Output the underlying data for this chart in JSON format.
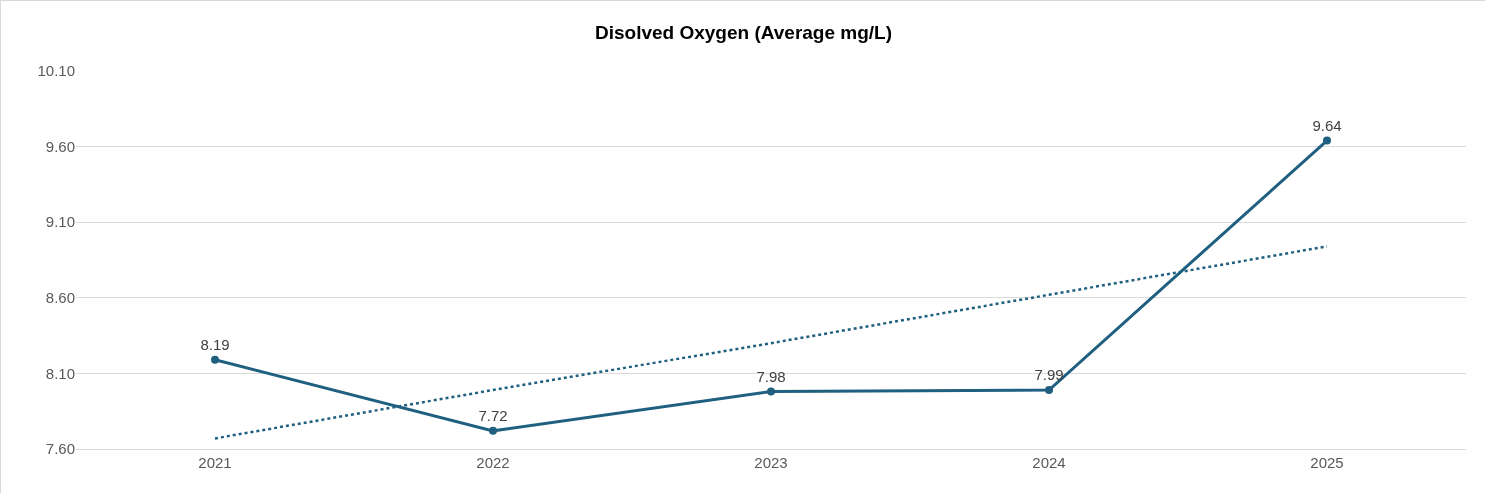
{
  "chart_data": {
    "type": "line",
    "title": "Disolved Oxygen (Average mg/L)",
    "categories": [
      "2021",
      "2022",
      "2023",
      "2024",
      "2025"
    ],
    "series": [
      {
        "color": "#1f5f7f",
        "values": [
          8.19,
          7.72,
          7.98,
          7.99,
          9.64
        ],
        "marker": "circle",
        "line_style": "solid",
        "data_labels": true
      },
      {
        "color": "#1f5f7f",
        "values": [
          7.67,
          7.99,
          8.3,
          8.62,
          8.94
        ],
        "marker": "none",
        "line_style": "dotted"
      }
    ],
    "ylim": [
      7.6,
      10.1
    ],
    "yticks": [
      {
        "value": 7.6,
        "label": "7.60"
      },
      {
        "value": 8.1,
        "label": "8.10"
      },
      {
        "value": 8.6,
        "label": "8.60"
      },
      {
        "value": 9.1,
        "label": "9.10"
      },
      {
        "value": 9.6,
        "label": "9.60"
      },
      {
        "value": 10.1,
        "label": "10.10"
      }
    ],
    "grid": "y"
  }
}
